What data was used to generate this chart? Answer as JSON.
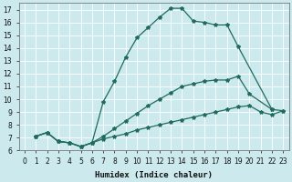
{
  "xlabel": "Humidex (Indice chaleur)",
  "xlim": [
    -0.5,
    23.5
  ],
  "ylim": [
    6,
    17.5
  ],
  "xticks": [
    0,
    1,
    2,
    3,
    4,
    5,
    6,
    7,
    8,
    9,
    10,
    11,
    12,
    13,
    14,
    15,
    16,
    17,
    18,
    19,
    20,
    21,
    22,
    23
  ],
  "yticks": [
    6,
    7,
    8,
    9,
    10,
    11,
    12,
    13,
    14,
    15,
    16,
    17
  ],
  "background_color": "#cce9ed",
  "grid_color": "#ffffff",
  "line_color": "#1f6b5e",
  "lines": [
    {
      "x": [
        1,
        2,
        3,
        4,
        5,
        6,
        7,
        8,
        9,
        10,
        11,
        12,
        13,
        14,
        15,
        16,
        17,
        18,
        19,
        22
      ],
      "y": [
        7.1,
        7.4,
        6.7,
        6.6,
        6.3,
        6.6,
        9.8,
        11.4,
        13.3,
        14.8,
        15.6,
        16.4,
        17.1,
        17.1,
        16.1,
        16.0,
        15.8,
        15.8,
        14.1,
        9.2
      ]
    },
    {
      "x": [
        1,
        2,
        3,
        4,
        5,
        6,
        7,
        8,
        9,
        10,
        11,
        12,
        13,
        14,
        15,
        16,
        17,
        18,
        19,
        20,
        21,
        22,
        23
      ],
      "y": [
        7.1,
        7.4,
        6.7,
        6.6,
        6.3,
        6.6,
        6.9,
        7.1,
        7.3,
        7.6,
        7.8,
        8.0,
        8.2,
        8.4,
        8.6,
        8.8,
        9.0,
        9.2,
        9.4,
        9.5,
        9.0,
        8.8,
        9.1
      ]
    },
    {
      "x": [
        1,
        2,
        3,
        4,
        5,
        6,
        7,
        8,
        9,
        10,
        11,
        12,
        13,
        14,
        15,
        16,
        17,
        18,
        19,
        20,
        22,
        23
      ],
      "y": [
        7.1,
        7.4,
        6.7,
        6.6,
        6.3,
        6.6,
        7.1,
        7.7,
        8.3,
        8.9,
        9.5,
        10.0,
        10.5,
        11.0,
        11.2,
        11.4,
        11.5,
        11.5,
        11.8,
        10.4,
        9.2,
        9.1
      ]
    }
  ]
}
